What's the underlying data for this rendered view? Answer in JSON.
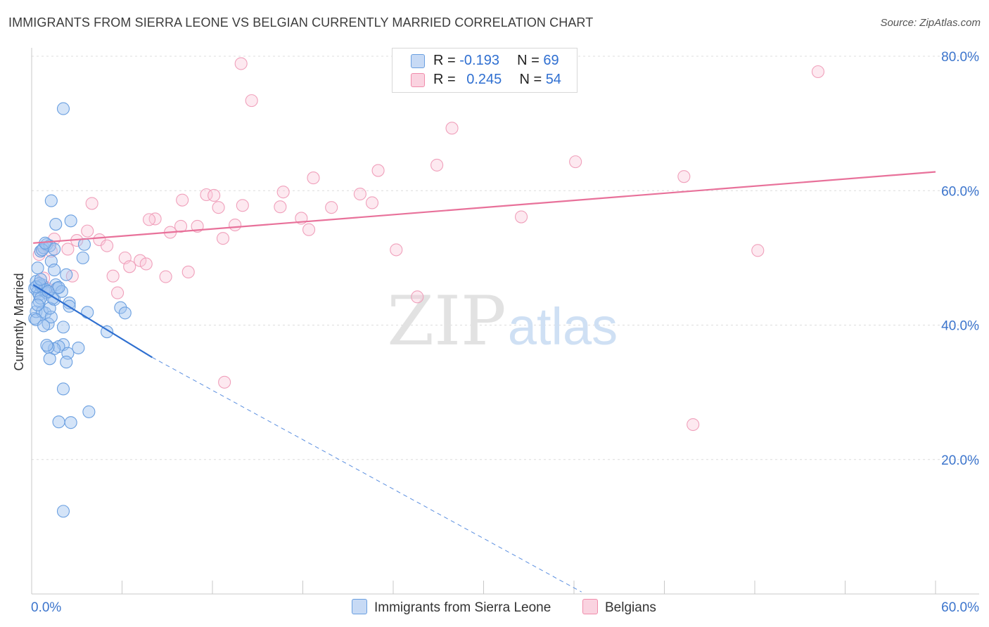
{
  "title": "IMMIGRANTS FROM SIERRA LEONE VS BELGIAN CURRENTLY MARRIED CORRELATION CHART",
  "source": "Source: ZipAtlas.com",
  "watermark": {
    "zip": "ZIP",
    "atlas": "atlas"
  },
  "legend": {
    "rows": [
      {
        "r_label": "R = ",
        "r_value": "-0.193",
        "n_label": "N = ",
        "n_value": "69",
        "color": "#6a9fe0"
      },
      {
        "r_label": "R = ",
        "r_value": "0.245",
        "n_label": "N = ",
        "n_value": "54",
        "color": "#f08cab"
      }
    ]
  },
  "bottom_legend": {
    "series1": "Immigrants from Sierra Leone",
    "series2": "Belgians"
  },
  "chart_data": {
    "type": "scatter",
    "ylabel": "Currently Married",
    "xlabel": "",
    "xlim": [
      0,
      60
    ],
    "ylim": [
      0,
      80
    ],
    "x_tick_labels": [
      {
        "value": 0,
        "label": "0.0%"
      },
      {
        "value": 60,
        "label": "60.0%"
      }
    ],
    "y_tick_labels": [
      {
        "value": 20,
        "label": "20.0%"
      },
      {
        "value": 40,
        "label": "40.0%"
      },
      {
        "value": 60,
        "label": "60.0%"
      },
      {
        "value": 80,
        "label": "80.0%"
      }
    ],
    "grid": true,
    "legend_position": "top-center",
    "series": [
      {
        "name": "Immigrants from Sierra Leone",
        "color": "#6a9fe0",
        "trend": {
          "x1": 0.1,
          "y1": 46.0,
          "x2": 8.0,
          "y2": 35.2,
          "dash_to_x": 36.5,
          "dash_to_y": 0.3
        },
        "points": [
          [
            0.2,
            45.5
          ],
          [
            0.3,
            46.5
          ],
          [
            0.4,
            45.0
          ],
          [
            0.5,
            44.5
          ],
          [
            0.2,
            41.0
          ],
          [
            0.3,
            42.0
          ],
          [
            0.6,
            45.8
          ],
          [
            0.7,
            46.0
          ],
          [
            0.8,
            45.2
          ],
          [
            1.0,
            44.8
          ],
          [
            0.4,
            48.5
          ],
          [
            0.6,
            51.0
          ],
          [
            0.8,
            51.5
          ],
          [
            1.0,
            52.0
          ],
          [
            1.2,
            51.8
          ],
          [
            1.5,
            51.3
          ],
          [
            1.3,
            49.5
          ],
          [
            1.5,
            48.2
          ],
          [
            1.6,
            55.0
          ],
          [
            1.3,
            58.5
          ],
          [
            0.5,
            43.5
          ],
          [
            0.7,
            42.0
          ],
          [
            0.9,
            41.8
          ],
          [
            1.1,
            40.2
          ],
          [
            1.3,
            41.2
          ],
          [
            1.5,
            43.8
          ],
          [
            1.2,
            42.5
          ],
          [
            1.6,
            46.0
          ],
          [
            1.7,
            45.5
          ],
          [
            2.5,
            43.3
          ],
          [
            2.5,
            42.8
          ],
          [
            3.4,
            50.0
          ],
          [
            3.5,
            52.0
          ],
          [
            2.6,
            55.5
          ],
          [
            3.7,
            41.9
          ],
          [
            2.1,
            72.2
          ],
          [
            5.9,
            42.6
          ],
          [
            6.2,
            41.8
          ],
          [
            5.0,
            39.0
          ],
          [
            2.1,
            37.1
          ],
          [
            1.8,
            36.8
          ],
          [
            1.5,
            36.5
          ],
          [
            1.1,
            36.7
          ],
          [
            3.1,
            36.6
          ],
          [
            2.4,
            35.8
          ],
          [
            1.2,
            35.0
          ],
          [
            2.3,
            34.5
          ],
          [
            2.1,
            30.5
          ],
          [
            3.8,
            27.1
          ],
          [
            1.8,
            25.6
          ],
          [
            2.6,
            25.5
          ],
          [
            2.1,
            12.3
          ],
          [
            0.7,
            51.2
          ],
          [
            0.9,
            45.3
          ],
          [
            0.6,
            44.0
          ],
          [
            0.3,
            40.8
          ],
          [
            0.8,
            39.9
          ],
          [
            1.0,
            37.0
          ],
          [
            2.1,
            39.7
          ],
          [
            0.5,
            46.2
          ],
          [
            0.9,
            52.2
          ],
          [
            1.4,
            44.0
          ],
          [
            2.0,
            45.0
          ],
          [
            1.8,
            45.6
          ],
          [
            0.4,
            43.0
          ],
          [
            0.3,
            45.7
          ],
          [
            1.1,
            45.0
          ],
          [
            2.3,
            47.5
          ],
          [
            0.6,
            46.8
          ]
        ]
      },
      {
        "name": "Belgians",
        "color": "#f08cab",
        "trend": {
          "x1": 0.1,
          "y1": 52.2,
          "x2": 60.0,
          "y2": 62.8
        },
        "points": [
          [
            13.9,
            78.9
          ],
          [
            14.6,
            73.4
          ],
          [
            52.2,
            77.7
          ],
          [
            27.9,
            69.3
          ],
          [
            36.1,
            64.3
          ],
          [
            26.9,
            63.8
          ],
          [
            23.0,
            63.0
          ],
          [
            43.3,
            62.1
          ],
          [
            18.7,
            61.9
          ],
          [
            16.7,
            59.8
          ],
          [
            21.8,
            59.5
          ],
          [
            11.6,
            59.4
          ],
          [
            12.1,
            59.3
          ],
          [
            10.0,
            58.6
          ],
          [
            22.6,
            58.2
          ],
          [
            4.0,
            58.1
          ],
          [
            14.0,
            57.8
          ],
          [
            16.5,
            57.6
          ],
          [
            19.9,
            57.5
          ],
          [
            12.4,
            57.5
          ],
          [
            8.2,
            55.8
          ],
          [
            7.8,
            55.7
          ],
          [
            17.9,
            55.9
          ],
          [
            32.5,
            56.1
          ],
          [
            9.9,
            54.7
          ],
          [
            13.5,
            54.9
          ],
          [
            11.0,
            54.7
          ],
          [
            18.4,
            54.2
          ],
          [
            9.2,
            53.8
          ],
          [
            3.7,
            54.0
          ],
          [
            12.7,
            52.9
          ],
          [
            4.5,
            52.7
          ],
          [
            1.5,
            52.8
          ],
          [
            3.0,
            52.6
          ],
          [
            5.0,
            51.8
          ],
          [
            24.2,
            51.2
          ],
          [
            48.2,
            51.1
          ],
          [
            2.4,
            51.3
          ],
          [
            6.2,
            50.0
          ],
          [
            7.2,
            49.6
          ],
          [
            7.6,
            49.1
          ],
          [
            6.5,
            48.7
          ],
          [
            10.4,
            47.9
          ],
          [
            2.7,
            47.3
          ],
          [
            5.4,
            47.3
          ],
          [
            8.9,
            47.2
          ],
          [
            0.8,
            47.0
          ],
          [
            5.7,
            44.8
          ],
          [
            25.6,
            44.2
          ],
          [
            1.0,
            45.5
          ],
          [
            12.8,
            31.5
          ],
          [
            43.9,
            25.2
          ],
          [
            1.3,
            51.0
          ],
          [
            0.5,
            50.5
          ]
        ]
      }
    ]
  }
}
